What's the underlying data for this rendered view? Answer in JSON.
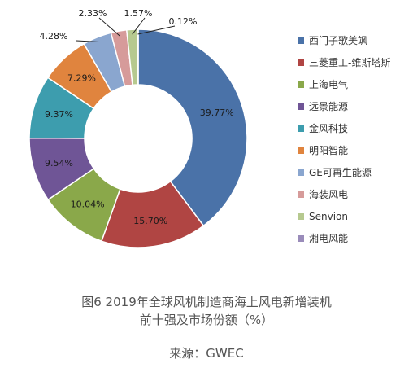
{
  "chart_data": {
    "type": "pie",
    "donut": true,
    "series": [
      {
        "name": "西门子歌美飒",
        "value": 39.77,
        "label": "39.77%",
        "color": "#4a72a8"
      },
      {
        "name": "三菱重工-维斯塔斯",
        "value": 15.7,
        "label": "15.70%",
        "color": "#b04543"
      },
      {
        "name": "上海电气",
        "value": 10.04,
        "label": "10.04%",
        "color": "#8aa84a"
      },
      {
        "name": "远景能源",
        "value": 9.54,
        "label": "9.54%",
        "color": "#6f5596"
      },
      {
        "name": "金风科技",
        "value": 9.37,
        "label": "9.37%",
        "color": "#3d9dae"
      },
      {
        "name": "明阳智能",
        "value": 7.29,
        "label": "7.29%",
        "color": "#e0843e"
      },
      {
        "name": "GE可再生能源",
        "value": 4.28,
        "label": "4.28%",
        "color": "#8aa6cf"
      },
      {
        "name": "海装风电",
        "value": 2.33,
        "label": "2.33%",
        "color": "#d69b9a"
      },
      {
        "name": "Senvion",
        "value": 1.57,
        "label": "1.57%",
        "color": "#b6c98f"
      },
      {
        "name": "湘电风能",
        "value": 0.12,
        "label": "0.12%",
        "color": "#9a8cba"
      }
    ],
    "legend_position": "right"
  },
  "caption": {
    "line1": "图6  2019年全球风机制造商海上风电新增装机",
    "line2": "前十强及市场份额（%）"
  },
  "source": "来源：GWEC"
}
